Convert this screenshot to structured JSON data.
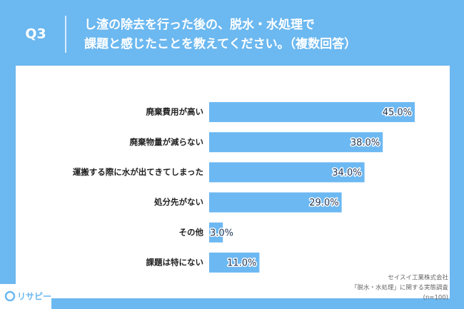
{
  "question": "Q3",
  "title_lines": [
    "し渣の除去を行った後の、脱水・水処理で",
    "課題と感じたことを教えてください。（複数回答）"
  ],
  "chart_data": {
    "type": "bar",
    "orientation": "horizontal",
    "categories": [
      "廃棄費用が高い",
      "廃棄物量が減らない",
      "運搬する際に水が出てきてしまった",
      "処分先がない",
      "その他",
      "課題は特にない"
    ],
    "values": [
      45,
      38,
      34,
      29,
      3,
      11
    ],
    "value_labels": [
      "45.0%",
      "38.0%",
      "34.0%",
      "29.0%",
      "3.0%",
      "11.0%"
    ],
    "color": "#6cb8f2",
    "xlim": [
      0,
      50
    ]
  },
  "source": [
    "セイスイ工業株式会社",
    "「脱水・水処理」に関する実態調査",
    "(n=100)"
  ],
  "logo": "リサピー"
}
